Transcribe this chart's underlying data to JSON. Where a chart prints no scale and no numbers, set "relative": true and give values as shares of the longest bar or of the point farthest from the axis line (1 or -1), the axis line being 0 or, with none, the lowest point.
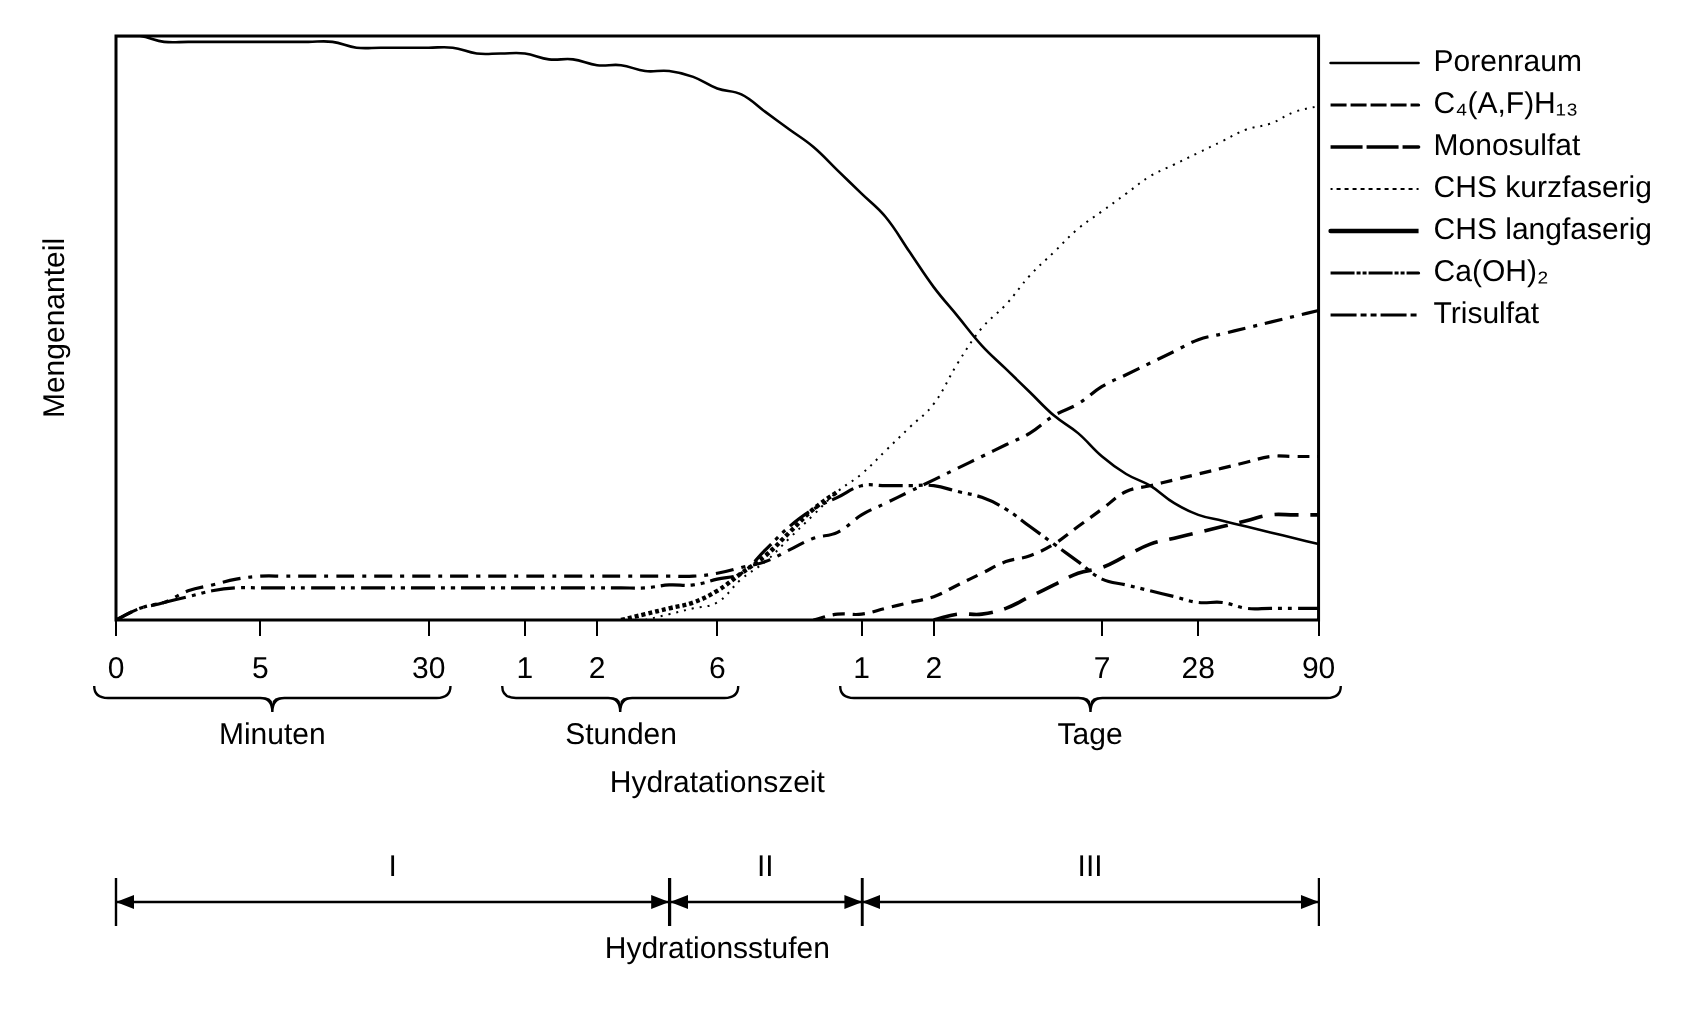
{
  "chart_data": {
    "type": "line",
    "relative": true,
    "ylabel": "Mengenanteil",
    "xlabel": "Hydratationszeit",
    "legend": "right",
    "grid": false,
    "categories": [
      "0",
      null,
      null,
      null,
      null,
      null,
      "5",
      null,
      null,
      null,
      null,
      null,
      null,
      "30",
      null,
      null,
      null,
      "1",
      null,
      null,
      "2",
      null,
      null,
      null,
      null,
      "6",
      null,
      null,
      null,
      null,
      null,
      "1",
      null,
      null,
      "2",
      null,
      null,
      null,
      null,
      null,
      null,
      "7",
      null,
      null,
      null,
      "28",
      null,
      null,
      null,
      null,
      "90"
    ],
    "annotations": [
      "Minuten",
      "Stunden",
      "Tage",
      "Hydrationsstufen",
      "I",
      "II",
      "III"
    ],
    "series": [
      {
        "name": "Porenraum",
        "color": "#000000",
        "line_style": "solid",
        "values": [
          1,
          1,
          0.99,
          0.99,
          0.99,
          0.99,
          0.99,
          0.99,
          0.99,
          0.99,
          0.98,
          0.98,
          0.98,
          0.98,
          0.98,
          0.97,
          0.97,
          0.97,
          0.96,
          0.96,
          0.95,
          0.95,
          0.94,
          0.94,
          0.93,
          0.91,
          0.9,
          0.87,
          0.84,
          0.81,
          0.77,
          0.73,
          0.69,
          0.63,
          0.57,
          0.52,
          0.47,
          0.43,
          0.39,
          0.35,
          0.32,
          0.28,
          0.25,
          0.23,
          0.2,
          0.18,
          0.17,
          0.16,
          0.15,
          0.14,
          0.13
        ]
      },
      {
        "name": "C₄(A,F)H₁₃",
        "color": "#000000",
        "line_style": "dashed",
        "values": [
          null,
          null,
          null,
          null,
          null,
          null,
          null,
          null,
          null,
          null,
          null,
          null,
          null,
          null,
          null,
          null,
          null,
          null,
          null,
          null,
          null,
          null,
          null,
          null,
          null,
          null,
          null,
          null,
          null,
          0,
          0.01,
          0.01,
          0.02,
          0.03,
          0.04,
          0.06,
          0.08,
          0.1,
          0.11,
          0.13,
          0.16,
          0.19,
          0.22,
          0.23,
          0.24,
          0.25,
          0.26,
          0.27,
          0.28,
          0.28,
          0.28
        ]
      },
      {
        "name": "Monosulfat",
        "color": "#000000",
        "line_style": "longdash",
        "values": [
          null,
          null,
          null,
          null,
          null,
          null,
          null,
          null,
          null,
          null,
          null,
          null,
          null,
          null,
          null,
          null,
          null,
          null,
          null,
          null,
          null,
          null,
          null,
          null,
          null,
          null,
          null,
          null,
          null,
          null,
          null,
          null,
          null,
          null,
          0,
          0.01,
          0.01,
          0.02,
          0.04,
          0.06,
          0.08,
          0.09,
          0.11,
          0.13,
          0.14,
          0.15,
          0.16,
          0.17,
          0.18,
          0.18,
          0.18
        ]
      },
      {
        "name": "CHS kurzfaserig",
        "color": "#000000",
        "line_style": "dotted",
        "values": [
          null,
          null,
          null,
          null,
          null,
          null,
          null,
          null,
          null,
          null,
          null,
          null,
          null,
          null,
          null,
          null,
          null,
          null,
          null,
          null,
          null,
          null,
          0,
          0.01,
          0.02,
          0.03,
          0.07,
          0.1,
          0.14,
          0.18,
          0.22,
          0.25,
          0.29,
          0.33,
          0.37,
          0.44,
          0.5,
          0.54,
          0.59,
          0.63,
          0.67,
          0.7,
          0.73,
          0.76,
          0.78,
          0.8,
          0.82,
          0.84,
          0.85,
          0.87,
          0.88
        ]
      },
      {
        "name": "CHS langfaserig",
        "color": "#000000",
        "line_style": "densedotted",
        "values": [
          null,
          null,
          null,
          null,
          null,
          null,
          null,
          null,
          null,
          null,
          null,
          null,
          null,
          null,
          null,
          null,
          null,
          null,
          null,
          null,
          null,
          0,
          0.01,
          0.02,
          0.03,
          0.05,
          0.08,
          0.11,
          0.15,
          0.19,
          0.22,
          null,
          null,
          null,
          null,
          null,
          null,
          null,
          null,
          null,
          null,
          null,
          null,
          null,
          null,
          null,
          null,
          null,
          null,
          null,
          null
        ]
      },
      {
        "name": "Ca(OH)₂",
        "color": "#000000",
        "line_style": "dashdot",
        "values": [
          0,
          0.02,
          0.03,
          0.05,
          0.06,
          0.07,
          0.075,
          0.075,
          0.075,
          0.075,
          0.075,
          0.075,
          0.075,
          0.075,
          0.075,
          0.075,
          0.075,
          0.075,
          0.075,
          0.075,
          0.075,
          0.075,
          0.075,
          0.075,
          0.075,
          0.08,
          0.09,
          0.1,
          0.12,
          0.14,
          0.15,
          0.18,
          0.2,
          0.22,
          0.24,
          0.26,
          0.28,
          0.3,
          0.32,
          0.35,
          0.37,
          0.4,
          0.42,
          0.44,
          0.46,
          0.48,
          0.49,
          0.5,
          0.51,
          0.52,
          0.53
        ]
      },
      {
        "name": "Trisulfat",
        "color": "#000000",
        "line_style": "dashdotdot",
        "values": [
          0,
          0.02,
          0.03,
          0.04,
          0.05,
          0.055,
          0.055,
          0.055,
          0.055,
          0.055,
          0.055,
          0.055,
          0.055,
          0.055,
          0.055,
          0.055,
          0.055,
          0.055,
          0.055,
          0.055,
          0.055,
          0.055,
          0.055,
          0.06,
          0.06,
          0.07,
          0.08,
          0.12,
          0.16,
          0.19,
          0.21,
          0.23,
          0.23,
          0.23,
          0.23,
          0.22,
          0.21,
          0.19,
          0.16,
          0.13,
          0.1,
          0.07,
          0.06,
          0.05,
          0.04,
          0.03,
          0.03,
          0.02,
          0.02,
          0.02,
          0.02
        ]
      }
    ]
  }
}
